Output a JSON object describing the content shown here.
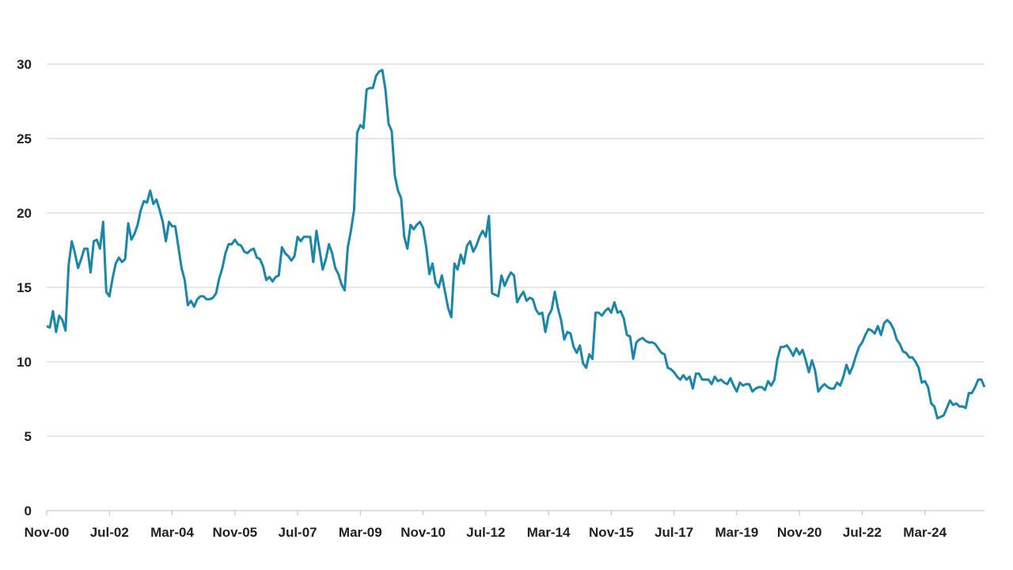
{
  "chart_data": {
    "type": "line",
    "color": "#1a86a9",
    "grid": true,
    "ylim": [
      0,
      30
    ],
    "yticks": [
      0,
      5,
      10,
      15,
      20,
      25,
      30
    ],
    "categories": [
      "Nov-00",
      null,
      null,
      null,
      null,
      null,
      null,
      null,
      null,
      null,
      null,
      null,
      null,
      null,
      null,
      null,
      null,
      null,
      null,
      null,
      "Jul-02",
      null,
      null,
      null,
      null,
      null,
      null,
      null,
      null,
      null,
      null,
      null,
      null,
      null,
      null,
      null,
      null,
      null,
      null,
      null,
      "Mar-04",
      null,
      null,
      null,
      null,
      null,
      null,
      null,
      null,
      null,
      null,
      null,
      null,
      null,
      null,
      null,
      null,
      null,
      null,
      null,
      "Nov-05",
      null,
      null,
      null,
      null,
      null,
      null,
      null,
      null,
      null,
      null,
      null,
      null,
      null,
      null,
      null,
      null,
      null,
      null,
      null,
      "Jul-07",
      null,
      null,
      null,
      null,
      null,
      null,
      null,
      null,
      null,
      null,
      null,
      null,
      null,
      null,
      null,
      null,
      null,
      null,
      null,
      "Mar-09",
      null,
      null,
      null,
      null,
      null,
      null,
      null,
      null,
      null,
      null,
      null,
      null,
      null,
      null,
      null,
      null,
      null,
      null,
      null,
      "Nov-10",
      null,
      null,
      null,
      null,
      null,
      null,
      null,
      null,
      null,
      null,
      null,
      null,
      null,
      null,
      null,
      null,
      null,
      null,
      null,
      "Jul-12",
      null,
      null,
      null,
      null,
      null,
      null,
      null,
      null,
      null,
      null,
      null,
      null,
      null,
      null,
      null,
      null,
      null,
      null,
      null,
      "Mar-14",
      null,
      null,
      null,
      null,
      null,
      null,
      null,
      null,
      null,
      null,
      null,
      null,
      null,
      null,
      null,
      null,
      null,
      null,
      null,
      "Nov-15",
      null,
      null,
      null,
      null,
      null,
      null,
      null,
      null,
      null,
      null,
      null,
      null,
      null,
      null,
      null,
      null,
      null,
      null,
      null,
      "Jul-17",
      null,
      null,
      null,
      null,
      null,
      null,
      null,
      null,
      null,
      null,
      null,
      null,
      null,
      null,
      null,
      null,
      null,
      null,
      null,
      "Mar-19",
      null,
      null,
      null,
      null,
      null,
      null,
      null,
      null,
      null,
      null,
      null,
      null,
      null,
      null,
      null,
      null,
      null,
      null,
      null,
      "Nov-20",
      null,
      null,
      null,
      null,
      null,
      null,
      null,
      null,
      null,
      null,
      null,
      null,
      null,
      null,
      null,
      null,
      null,
      null,
      null,
      "Jul-22",
      null,
      null,
      null,
      null,
      null,
      null,
      null,
      null,
      null,
      null,
      null,
      null,
      null,
      null,
      null,
      null,
      null,
      null,
      null,
      "Mar-24",
      null,
      null,
      null,
      null,
      null,
      null,
      null,
      null,
      null,
      null,
      null,
      null,
      null,
      null,
      null,
      null,
      null,
      null,
      null
    ],
    "values": [
      12.4,
      12.3,
      13.4,
      12.0,
      13.1,
      12.8,
      12.1,
      16.5,
      18.1,
      17.3,
      16.3,
      16.9,
      17.6,
      17.6,
      16.0,
      18.1,
      18.2,
      17.6,
      19.4,
      14.7,
      14.4,
      15.6,
      16.6,
      17.0,
      16.7,
      16.9,
      19.3,
      18.2,
      18.6,
      19.2,
      20.2,
      20.8,
      20.7,
      21.5,
      20.6,
      20.9,
      20.2,
      19.4,
      18.1,
      19.4,
      19.1,
      19.1,
      17.7,
      16.3,
      15.5,
      13.8,
      14.1,
      13.7,
      14.2,
      14.4,
      14.4,
      14.2,
      14.2,
      14.3,
      14.6,
      15.6,
      16.3,
      17.3,
      17.9,
      17.9,
      18.2,
      17.9,
      17.8,
      17.4,
      17.3,
      17.5,
      17.6,
      17.0,
      16.9,
      16.4,
      15.5,
      15.7,
      15.4,
      15.7,
      15.8,
      17.7,
      17.3,
      17.1,
      16.8,
      17.1,
      18.4,
      18.1,
      18.4,
      18.4,
      18.4,
      16.7,
      18.8,
      17.5,
      16.2,
      16.9,
      17.9,
      17.3,
      16.3,
      15.9,
      15.2,
      14.8,
      17.7,
      18.8,
      20.2,
      25.4,
      25.9,
      25.7,
      28.3,
      28.4,
      28.4,
      29.2,
      29.5,
      29.6,
      28.3,
      26.0,
      25.5,
      22.5,
      21.5,
      21.0,
      18.4,
      17.6,
      19.2,
      18.9,
      19.2,
      19.4,
      19.0,
      17.7,
      15.9,
      16.6,
      15.3,
      15.0,
      15.8,
      14.7,
      13.6,
      13.0,
      16.6,
      16.2,
      17.2,
      16.6,
      17.8,
      18.1,
      17.4,
      17.8,
      18.4,
      18.8,
      18.4,
      19.8,
      14.6,
      14.5,
      14.4,
      15.8,
      15.1,
      15.6,
      16.0,
      15.8,
      14.0,
      14.4,
      14.7,
      14.1,
      14.3,
      14.2,
      13.5,
      13.2,
      13.3,
      12.0,
      13.1,
      13.5,
      14.7,
      13.6,
      12.8,
      11.5,
      12.0,
      11.9,
      11.0,
      10.6,
      11.1,
      9.9,
      9.6,
      10.5,
      10.2,
      13.3,
      13.3,
      13.1,
      13.4,
      13.6,
      13.3,
      14.0,
      13.3,
      13.4,
      12.9,
      11.8,
      11.7,
      10.2,
      11.3,
      11.5,
      11.6,
      11.4,
      11.3,
      11.3,
      11.2,
      10.9,
      10.6,
      10.5,
      9.6,
      9.5,
      9.3,
      9.0,
      8.8,
      9.1,
      8.8,
      9.0,
      8.2,
      9.2,
      9.2,
      8.8,
      8.8,
      8.8,
      8.5,
      9.0,
      8.7,
      8.8,
      8.6,
      8.5,
      8.9,
      8.4,
      8.0,
      8.6,
      8.4,
      8.5,
      8.5,
      8.0,
      8.2,
      8.3,
      8.3,
      8.1,
      8.7,
      8.4,
      8.8,
      10.2,
      11.0,
      11.0,
      11.1,
      10.8,
      10.4,
      10.9,
      10.5,
      10.8,
      10.1,
      9.3,
      10.1,
      9.4,
      8.0,
      8.3,
      8.5,
      8.3,
      8.2,
      8.2,
      8.6,
      8.4,
      9.0,
      9.8,
      9.2,
      9.7,
      10.4,
      11.0,
      11.3,
      11.8,
      12.2,
      12.1,
      11.9,
      12.4,
      11.8,
      12.6,
      12.8,
      12.6,
      12.2,
      11.5,
      11.2,
      10.7,
      10.6,
      10.3,
      10.3,
      10.0,
      9.6,
      8.6,
      8.7,
      8.3,
      7.2,
      7.0,
      6.2,
      6.3,
      6.4,
      6.9,
      7.4,
      7.1,
      7.2,
      7.0,
      7.0,
      6.9,
      7.9,
      7.9,
      8.3,
      8.8,
      8.8,
      8.3
    ]
  }
}
